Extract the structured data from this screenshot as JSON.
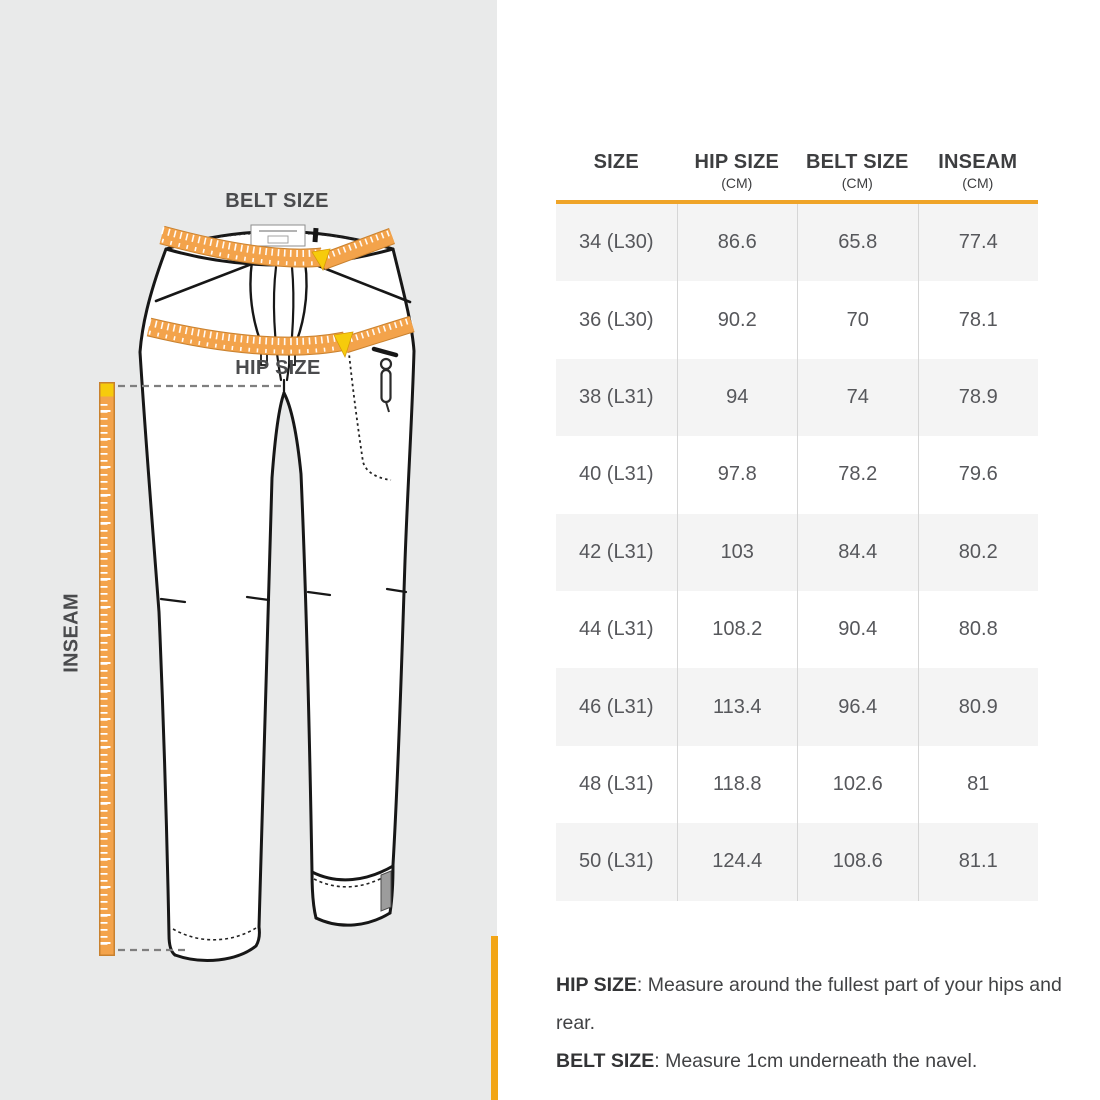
{
  "diagram": {
    "belt_label": "BELT SIZE",
    "hip_label": "HIP SIZE",
    "inseam_label": "INSEAM"
  },
  "table": {
    "headers": [
      {
        "title": "SIZE",
        "unit": ""
      },
      {
        "title": "HIP SIZE",
        "unit": "(CM)"
      },
      {
        "title": "BELT SIZE",
        "unit": "(CM)"
      },
      {
        "title": "INSEAM",
        "unit": "(CM)"
      }
    ],
    "rows": [
      [
        "34 (L30)",
        "86.6",
        "65.8",
        "77.4"
      ],
      [
        "36 (L30)",
        "90.2",
        "70",
        "78.1"
      ],
      [
        "38 (L31)",
        "94",
        "74",
        "78.9"
      ],
      [
        "40 (L31)",
        "97.8",
        "78.2",
        "79.6"
      ],
      [
        "42 (L31)",
        "103",
        "84.4",
        "80.2"
      ],
      [
        "44 (L31)",
        "108.2",
        "90.4",
        "80.8"
      ],
      [
        "46 (L31)",
        "113.4",
        "96.4",
        "80.9"
      ],
      [
        "48 (L31)",
        "118.8",
        "102.6",
        "81"
      ],
      [
        "50 (L31)",
        "124.4",
        "108.6",
        "81.1"
      ]
    ]
  },
  "footnotes": [
    {
      "label": "HIP SIZE",
      "text": ": Measure around the fullest part of your hips and rear."
    },
    {
      "label": "BELT SIZE",
      "text": ": Measure 1cm underneath the navel."
    }
  ],
  "colors": {
    "panel_gray": "#e9eaea",
    "tape_orange": "#f3a34b",
    "tape_border": "#c8812f",
    "tip_yellow": "#f6cb0c",
    "header_rule_orange": "#efa428",
    "accent_bar_orange": "#f2a516",
    "row_shade_gray": "#f4f4f4",
    "text_dark": "#3d3e40"
  },
  "chart_data": {
    "type": "table",
    "title": "Pants size guide",
    "columns": [
      "SIZE",
      "HIP SIZE (CM)",
      "BELT SIZE (CM)",
      "INSEAM (CM)"
    ],
    "rows": [
      [
        "34 (L30)",
        86.6,
        65.8,
        77.4
      ],
      [
        "36 (L30)",
        90.2,
        70,
        78.1
      ],
      [
        "38 (L31)",
        94,
        74,
        78.9
      ],
      [
        "40 (L31)",
        97.8,
        78.2,
        79.6
      ],
      [
        "42 (L31)",
        103,
        84.4,
        80.2
      ],
      [
        "44 (L31)",
        108.2,
        90.4,
        80.8
      ],
      [
        "46 (L31)",
        113.4,
        96.4,
        80.9
      ],
      [
        "48 (L31)",
        118.8,
        102.6,
        81
      ],
      [
        "50 (L31)",
        124.4,
        108.6,
        81.1
      ]
    ],
    "notes": [
      "HIP SIZE: Measure around the fullest part of your hips and rear.",
      "BELT SIZE: Measure 1cm underneath the navel."
    ]
  }
}
